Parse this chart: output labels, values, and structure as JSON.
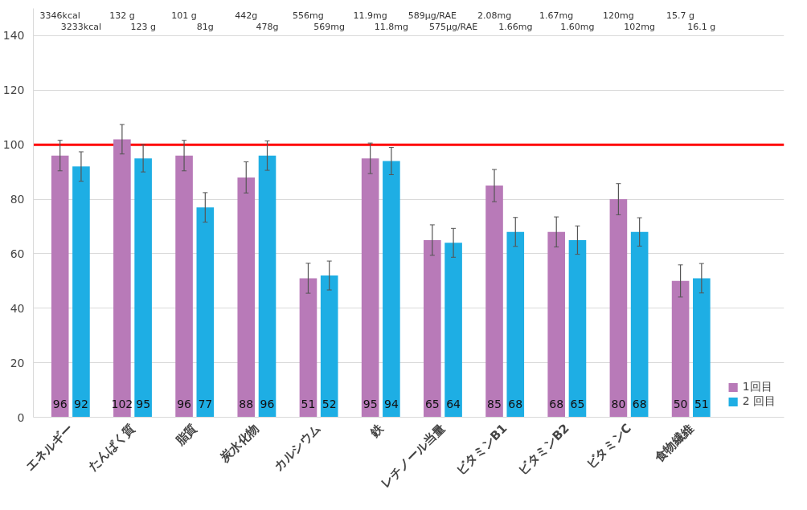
{
  "chart_data": {
    "type": "bar",
    "categories": [
      "エネルギー",
      "たんぱく質",
      "脂質",
      "炭水化物",
      "カルシウム",
      "鉄",
      "レチノール当量",
      "ビタミンB1",
      "ビタミンB2",
      "ビタミンC",
      "食物繊維"
    ],
    "series": [
      {
        "name": "1回目",
        "color": "#b87ab8",
        "values": [
          96,
          102,
          96,
          88,
          51,
          95,
          65,
          85,
          68,
          80,
          50
        ],
        "errors": [
          5.6,
          5.4,
          5.6,
          5.7,
          5.5,
          5.6,
          5.6,
          5.9,
          5.5,
          5.7,
          5.9
        ]
      },
      {
        "name": "2 回目",
        "color": "#1eaee4",
        "values": [
          92,
          95,
          77,
          96,
          52,
          94,
          64,
          68,
          65,
          68,
          51
        ],
        "errors": [
          5.4,
          5,
          5.4,
          5.4,
          5.3,
          5,
          5.3,
          5.3,
          5.2,
          5.2,
          5.4
        ]
      }
    ],
    "data_labels": true,
    "ylim": [
      0,
      150
    ],
    "yticks": [
      0,
      20,
      40,
      60,
      80,
      100,
      120,
      140
    ],
    "grid": "y",
    "legend": "bottom right",
    "ref_lines": [
      {
        "axis": "y",
        "value": 100,
        "color": "#ff0000",
        "line_style": "solid"
      }
    ],
    "annotations": [
      "3346kcal",
      "3233kcal",
      "132 g",
      "123 g",
      "101 g",
      "81g",
      "442g",
      "478g",
      "556mg",
      "569mg",
      "11.9mg",
      "11.8mg",
      "589μg/RAE",
      "575μg/RAE",
      "2.08mg",
      "1.66mg",
      "1.67mg",
      "1.60mg",
      "120mg",
      "102mg",
      "15.7 g",
      "16.1 g"
    ]
  }
}
